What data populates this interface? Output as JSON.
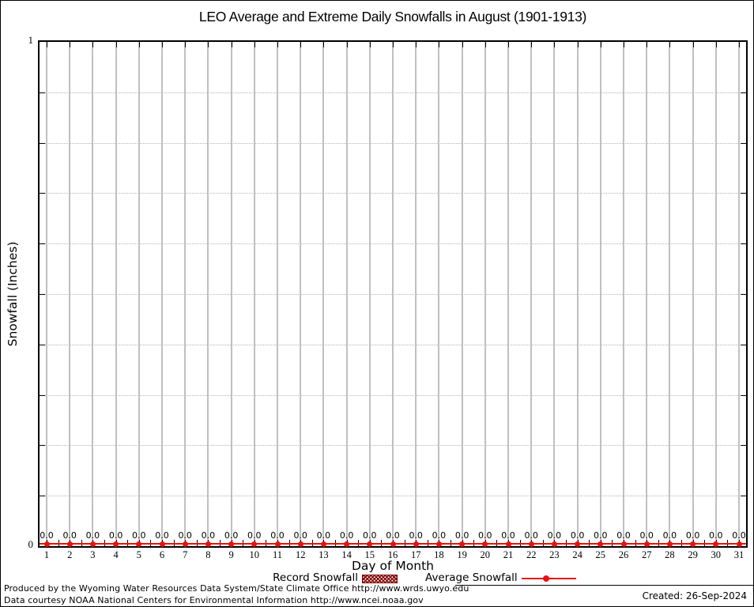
{
  "chart": {
    "title": "LEO Average and Extreme Daily Snowfalls in August (1901-1913)",
    "xlabel": "Day of Month",
    "ylabel": "Snowfall (Inches)",
    "y_axis": {
      "max_label": "1",
      "min_label": "0"
    },
    "legend": {
      "record_label": "Record Snowfall",
      "average_label": "Average Snowfall"
    }
  },
  "chart_data": {
    "type": "line",
    "title": "LEO Average and Extreme Daily Snowfalls in August (1901-1913)",
    "xlabel": "Day of Month",
    "ylabel": "Snowfall (Inches)",
    "x": [
      1,
      2,
      3,
      4,
      5,
      6,
      7,
      8,
      9,
      10,
      11,
      12,
      13,
      14,
      15,
      16,
      17,
      18,
      19,
      20,
      21,
      22,
      23,
      24,
      25,
      26,
      27,
      28,
      29,
      30,
      31
    ],
    "series": [
      {
        "name": "Record Snowfall",
        "style": "hatched-bar",
        "color": "#7f0000",
        "values": [
          0,
          0,
          0,
          0,
          0,
          0,
          0,
          0,
          0,
          0,
          0,
          0,
          0,
          0,
          0,
          0,
          0,
          0,
          0,
          0,
          0,
          0,
          0,
          0,
          0,
          0,
          0,
          0,
          0,
          0,
          0
        ]
      },
      {
        "name": "Average Snowfall",
        "style": "line-point",
        "color": "#e8120f",
        "values": [
          0,
          0,
          0,
          0,
          0,
          0,
          0,
          0,
          0,
          0,
          0,
          0,
          0,
          0,
          0,
          0,
          0,
          0,
          0,
          0,
          0,
          0,
          0,
          0,
          0,
          0,
          0,
          0,
          0,
          0,
          0
        ]
      }
    ],
    "value_labels": [
      "0.0",
      "0.0",
      "0.0",
      "0.0",
      "0.0",
      "0.0",
      "0.0",
      "0.0",
      "0.0",
      "0.0",
      "0.0",
      "0.0",
      "0.0",
      "0.0",
      "0.0",
      "0.0",
      "0.0",
      "0.0",
      "0.0",
      "0.0",
      "0.0",
      "0.0",
      "0.0",
      "0.0",
      "0.0",
      "0.0",
      "0.0",
      "0.0",
      "0.0",
      "0.0",
      "0.0"
    ],
    "ylim": [
      0,
      1
    ],
    "y_labeled_ticks": [
      0,
      1
    ],
    "y_minor_tick_interval": 0.1,
    "grid": true,
    "legend_position": "bottom"
  },
  "footer": {
    "line1": "Produced by the Wyoming Water Resources Data System/State Climate Office http://www.wrds.uwyo.edu",
    "line2": "Data courtesy NOAA National Centers for Environmental Information http://www.ncei.noaa.gov",
    "created": "Created: 26-Sep-2024"
  },
  "colors": {
    "average_line": "#e8120f",
    "record_hatch": "#7f0000",
    "day_gridline": "#c0c0c0",
    "dotted_gridline": "#b4b4b4",
    "frame": "#000000",
    "background": "#ffffff"
  }
}
